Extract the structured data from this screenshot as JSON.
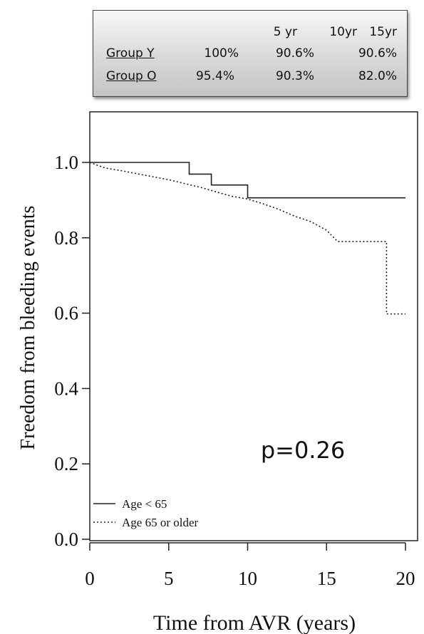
{
  "stats_table": {
    "columns": [
      "5 yr",
      "10yr",
      "15yr"
    ],
    "rows": [
      {
        "group": "Group Y",
        "values": [
          "100%",
          "90.6%",
          "90.6%"
        ]
      },
      {
        "group": "Group O",
        "values": [
          "95.4%",
          "90.3%",
          "82.0%"
        ]
      }
    ]
  },
  "chart_data": {
    "type": "line",
    "subtype": "kaplan-meier step curves",
    "xlabel": "Time from AVR (years)",
    "ylabel": "Freedom from bleeding events",
    "xlim": [
      0,
      20
    ],
    "ylim": [
      0,
      1.1
    ],
    "x_ticks": [
      "0",
      "5",
      "10",
      "15",
      "20"
    ],
    "y_ticks": [
      "0.0",
      "0.2",
      "0.4",
      "0.6",
      "0.8",
      "1.0"
    ],
    "grid": false,
    "legend_position": "bottom-left",
    "annotation": "p=0.26",
    "series": [
      {
        "name": "Age < 65",
        "style": "solid",
        "color": "#222222",
        "points": [
          [
            0,
            1.0
          ],
          [
            6.3,
            1.0
          ],
          [
            6.3,
            0.969
          ],
          [
            7.7,
            0.969
          ],
          [
            7.7,
            0.94
          ],
          [
            10.0,
            0.94
          ],
          [
            10.0,
            0.906
          ],
          [
            20.0,
            0.906
          ]
        ]
      },
      {
        "name": "Age 65 or older",
        "style": "dotted",
        "color": "#222222",
        "points": [
          [
            0,
            1.0
          ],
          [
            0.5,
            0.992
          ],
          [
            1.0,
            0.985
          ],
          [
            2.0,
            0.978
          ],
          [
            3.0,
            0.97
          ],
          [
            4.0,
            0.962
          ],
          [
            5.0,
            0.954
          ],
          [
            6.0,
            0.944
          ],
          [
            7.0,
            0.934
          ],
          [
            8.0,
            0.922
          ],
          [
            9.0,
            0.91
          ],
          [
            10.0,
            0.903
          ],
          [
            11.0,
            0.89
          ],
          [
            12.0,
            0.875
          ],
          [
            13.0,
            0.857
          ],
          [
            14.0,
            0.843
          ],
          [
            15.0,
            0.82
          ],
          [
            15.7,
            0.79
          ],
          [
            18.8,
            0.79
          ],
          [
            18.8,
            0.598
          ],
          [
            20.0,
            0.598
          ]
        ]
      }
    ]
  }
}
